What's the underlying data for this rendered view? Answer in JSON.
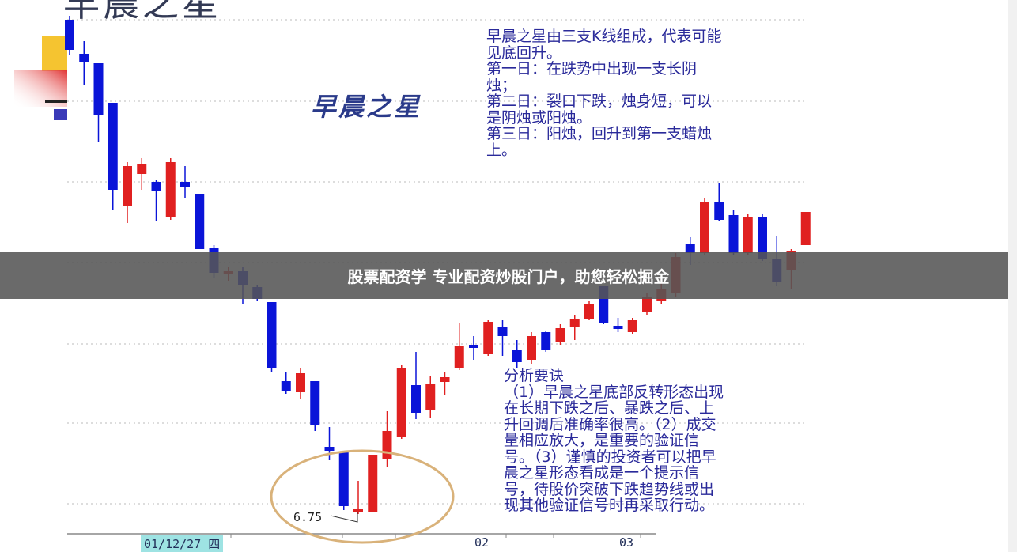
{
  "banner": {
    "text": "股票配资学 专业配资炒股门户，助您轻松掘金"
  },
  "slide": {
    "title": "早晨之星",
    "figure_label": "早晨之星",
    "description": "早晨之星由三支K线组成，代表可能\n见底回升。\n第一日：在跌势中出现一支长阴\n烛；\n第二日：裂口下跌，烛身短，可以\n是阴烛或阳烛。\n第三日：阳烛，回升到第一支蜡烛\n上。",
    "analysis": "分析要诀\n（1）早晨之星底部反转形态出现\n在长期下跌之后、暴跌之后、上\n升回调后准确率很高。（2）成交\n量相应放大，是重要的验证信\n号。（3）谨慎的投资者可以把早\n晨之星形态看成是一个提示信\n号，待股价突破下跌趋势线或出\n现其他验证信号时再采取行动。"
  },
  "chart_data": {
    "type": "candlestick",
    "title": "",
    "x_tick_labels": [
      "01/12/27 四",
      "02",
      "03"
    ],
    "annotation_low": "6.75",
    "grid": true,
    "colors": {
      "up": "#e02020",
      "down": "#0a14d8",
      "highlight_ellipse": "#d9b27a"
    },
    "candles_ohlc": [
      [
        13.0,
        13.05,
        12.55,
        12.62
      ],
      [
        12.57,
        12.73,
        12.17,
        12.47
      ],
      [
        12.45,
        12.45,
        11.45,
        11.8
      ],
      [
        11.95,
        11.95,
        10.6,
        10.85
      ],
      [
        10.65,
        11.2,
        10.43,
        11.15
      ],
      [
        11.05,
        11.25,
        10.85,
        11.18
      ],
      [
        10.95,
        10.97,
        10.45,
        10.83
      ],
      [
        10.5,
        11.25,
        10.47,
        11.2
      ],
      [
        10.95,
        11.15,
        10.75,
        10.88
      ],
      [
        10.8,
        10.8,
        10.1,
        10.1
      ],
      [
        10.12,
        10.15,
        9.73,
        9.8
      ],
      [
        9.78,
        9.88,
        9.7,
        9.82
      ],
      [
        9.82,
        9.88,
        9.4,
        9.65
      ],
      [
        9.62,
        9.65,
        9.45,
        9.47
      ],
      [
        9.43,
        9.43,
        8.55,
        8.6
      ],
      [
        8.43,
        8.55,
        8.27,
        8.31
      ],
      [
        8.29,
        8.6,
        8.2,
        8.53
      ],
      [
        8.43,
        8.43,
        7.8,
        7.87
      ],
      [
        7.6,
        7.85,
        7.43,
        7.55
      ],
      [
        7.53,
        7.55,
        6.8,
        6.85
      ],
      [
        6.78,
        7.17,
        6.75,
        6.82
      ],
      [
        6.77,
        7.5,
        6.77,
        7.5
      ],
      [
        7.45,
        8.05,
        7.35,
        7.8
      ],
      [
        7.73,
        8.63,
        7.7,
        8.6
      ],
      [
        8.38,
        8.8,
        7.95,
        8.03
      ],
      [
        8.07,
        8.5,
        7.97,
        8.4
      ],
      [
        8.42,
        8.55,
        8.25,
        8.48
      ],
      [
        8.6,
        9.17,
        8.57,
        8.88
      ],
      [
        8.89,
        9.0,
        8.7,
        8.85
      ],
      [
        8.77,
        9.2,
        8.75,
        9.18
      ],
      [
        9.12,
        9.2,
        8.75,
        9.0
      ],
      [
        8.82,
        8.95,
        8.6,
        8.67
      ],
      [
        8.7,
        9.05,
        8.65,
        9.0
      ],
      [
        9.05,
        9.07,
        8.8,
        8.83
      ],
      [
        8.92,
        9.15,
        8.89,
        9.1
      ],
      [
        9.12,
        9.27,
        8.95,
        9.22
      ],
      [
        9.22,
        9.45,
        9.2,
        9.4
      ],
      [
        9.63,
        9.63,
        9.15,
        9.17
      ],
      [
        9.13,
        9.23,
        9.05,
        9.09
      ],
      [
        9.05,
        9.23,
        9.03,
        9.2
      ],
      [
        9.3,
        9.55,
        9.27,
        9.5
      ],
      [
        9.45,
        9.7,
        9.4,
        9.6
      ],
      [
        9.55,
        10.05,
        9.5,
        10.0
      ],
      [
        10.17,
        10.25,
        9.9,
        10.05
      ],
      [
        10.05,
        10.75,
        10.03,
        10.7
      ],
      [
        10.7,
        10.93,
        10.45,
        10.47
      ],
      [
        10.53,
        10.6,
        10.03,
        10.05
      ],
      [
        10.05,
        10.55,
        10.03,
        10.5
      ],
      [
        10.5,
        10.55,
        9.95,
        9.97
      ],
      [
        9.97,
        10.27,
        9.63,
        9.68
      ],
      [
        9.83,
        10.1,
        9.6,
        10.07
      ],
      [
        10.15,
        10.57,
        10.15,
        10.57
      ]
    ]
  }
}
